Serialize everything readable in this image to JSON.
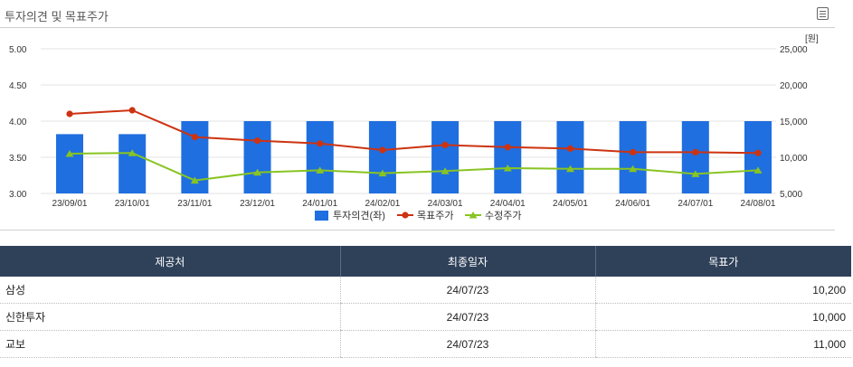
{
  "section": {
    "title": "투자의견 및 목표주가"
  },
  "chart_data": {
    "type": "bar+line",
    "categories": [
      "23/09/01",
      "23/10/01",
      "23/11/01",
      "23/12/01",
      "24/01/01",
      "24/02/01",
      "24/03/01",
      "24/04/01",
      "24/05/01",
      "24/06/01",
      "24/07/01",
      "24/08/01"
    ],
    "left_axis": {
      "ticks": [
        "3.00",
        "3.50",
        "4.00",
        "4.50",
        "5.00"
      ],
      "min": 3.0,
      "max": 5.0
    },
    "right_axis": {
      "unit": "[원]",
      "ticks": [
        "5,000",
        "10,000",
        "15,000",
        "20,000",
        "25,000"
      ],
      "min": 5000,
      "max": 25000
    },
    "series": [
      {
        "name": "투자의견(좌)",
        "kind": "bar",
        "axis": "left",
        "color": "#1f6fe0",
        "values": [
          3.82,
          3.82,
          4.0,
          4.0,
          4.0,
          4.0,
          4.0,
          4.0,
          4.0,
          4.0,
          4.0,
          4.0
        ]
      },
      {
        "name": "목표주가",
        "kind": "line",
        "axis": "right",
        "color": "#cc3311",
        "marker": "circle",
        "values": [
          16000,
          16500,
          12800,
          12300,
          11900,
          11000,
          11700,
          11400,
          11200,
          10700,
          10700,
          10600
        ]
      },
      {
        "name": "수정주가",
        "kind": "line",
        "axis": "right",
        "color": "#88c422",
        "marker": "triangle",
        "values": [
          10500,
          10600,
          6800,
          7900,
          8200,
          7800,
          8100,
          8500,
          8400,
          8400,
          7700,
          8200
        ]
      }
    ],
    "legend_position": "bottom",
    "grid": true
  },
  "table": {
    "headers": [
      "제공처",
      "최종일자",
      "목표가"
    ],
    "rows": [
      [
        "삼성",
        "24/07/23",
        "10,200"
      ],
      [
        "신한투자",
        "24/07/23",
        "10,000"
      ],
      [
        "교보",
        "24/07/23",
        "11,000"
      ]
    ]
  }
}
